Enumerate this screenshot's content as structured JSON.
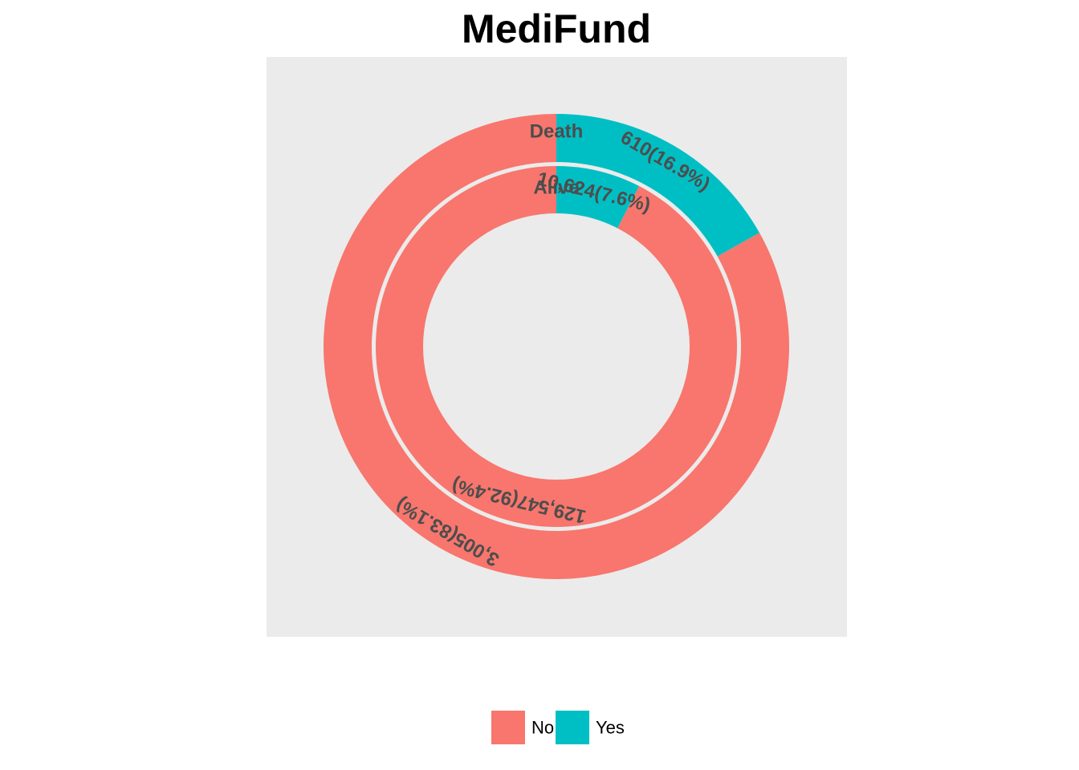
{
  "chart_data": {
    "type": "pie",
    "subtype": "nested-donut",
    "title": "MediFund",
    "categories": [
      "No",
      "Yes"
    ],
    "colors": {
      "No": "#F8766D",
      "Yes": "#00BFC4",
      "panel_background": "#EBEBEB",
      "label_text": "#4D4D4D"
    },
    "rings": [
      {
        "name": "Death",
        "position": "outer",
        "slices": [
          {
            "category": "Yes",
            "count": 610,
            "percent": 16.9,
            "label": "610(16.9%)"
          },
          {
            "category": "No",
            "count": 3005,
            "percent": 83.1,
            "label": "3,005(83.1%)"
          }
        ]
      },
      {
        "name": "Alive",
        "position": "inner",
        "slices": [
          {
            "category": "Yes",
            "count": 10624,
            "percent": 7.6,
            "label": "10,624(7.6%)"
          },
          {
            "category": "No",
            "count": 129547,
            "percent": 92.4,
            "label": "129,547(92.4%)"
          }
        ]
      }
    ],
    "legend": {
      "position": "bottom",
      "entries": [
        {
          "category": "No",
          "label": "No"
        },
        {
          "category": "Yes",
          "label": "Yes"
        }
      ]
    },
    "grid": false
  }
}
